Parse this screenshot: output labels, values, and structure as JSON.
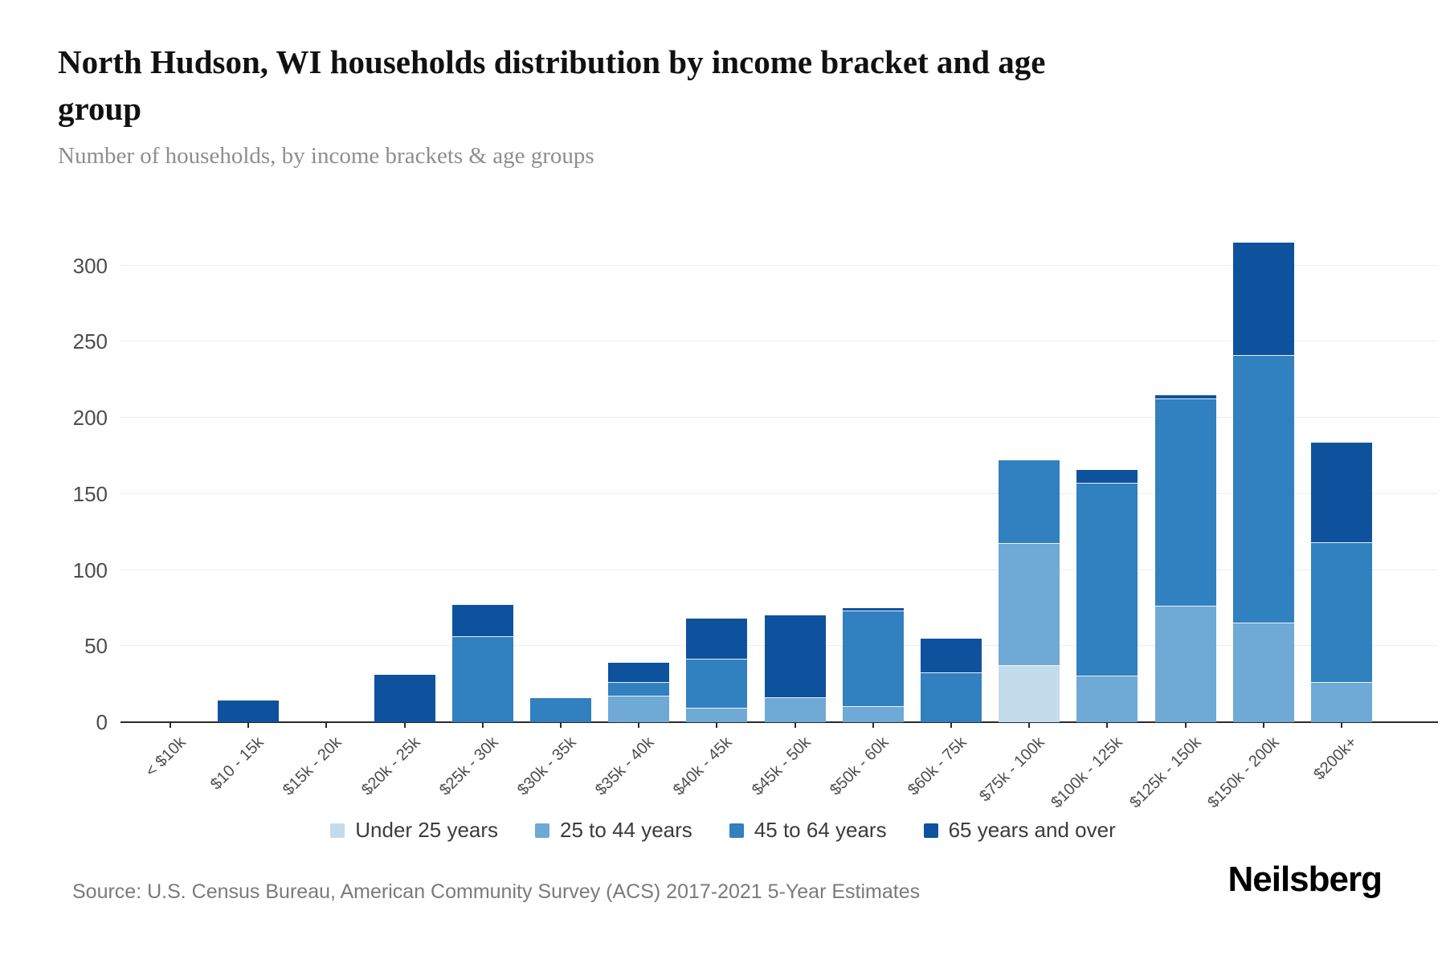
{
  "header": {
    "title": "North Hudson, WI households distribution by income bracket and age group",
    "subtitle": "Number of households, by income brackets & age groups"
  },
  "footer": {
    "source": "Source: U.S. Census Bureau, American Community Survey (ACS) 2017-2021 5-Year Estimates",
    "brand": "Neilsberg"
  },
  "chart_data": {
    "type": "bar",
    "stacked": true,
    "title": "North Hudson, WI households distribution by income bracket and age group",
    "subtitle": "Number of households, by income brackets & age groups",
    "xlabel": "",
    "ylabel": "Number of households",
    "ylim": [
      0,
      340
    ],
    "yticks": [
      0,
      50,
      100,
      150,
      200,
      250,
      300
    ],
    "grid": true,
    "legend_position": "bottom",
    "categories": [
      "< $10k",
      "$10 - 15k",
      "$15k - 20k",
      "$20k - 25k",
      "$25k - 30k",
      "$30k - 35k",
      "$35k - 40k",
      "$40k - 45k",
      "$45k - 50k",
      "$50k - 60k",
      "$60k - 75k",
      "$75k - 100k",
      "$100k - 125k",
      "$125k - 150k",
      "$150k - 200k",
      "$200k+"
    ],
    "series": [
      {
        "name": "Under 25 years",
        "color": "#c3dcec",
        "values": [
          0,
          0,
          0,
          0,
          0,
          0,
          0,
          0,
          0,
          0,
          0,
          37,
          0,
          0,
          0,
          0
        ]
      },
      {
        "name": "25 to 44 years",
        "color": "#6fa9d5",
        "values": [
          0,
          0,
          0,
          0,
          0,
          0,
          17,
          9,
          16,
          10,
          0,
          80,
          30,
          76,
          65,
          26
        ]
      },
      {
        "name": "45 to 64 years",
        "color": "#3180bf",
        "values": [
          0,
          0,
          0,
          0,
          56,
          16,
          9,
          32,
          0,
          63,
          32,
          55,
          127,
          136,
          176,
          92
        ]
      },
      {
        "name": "65 years and over",
        "color": "#0e529e",
        "values": [
          0,
          14,
          0,
          31,
          21,
          0,
          13,
          27,
          54,
          2,
          23,
          0,
          9,
          3,
          74,
          66
        ]
      }
    ],
    "totals": [
      0,
      14,
      0,
      31,
      77,
      16,
      39,
      68,
      70,
      75,
      55,
      172,
      166,
      215,
      315,
      184
    ]
  }
}
